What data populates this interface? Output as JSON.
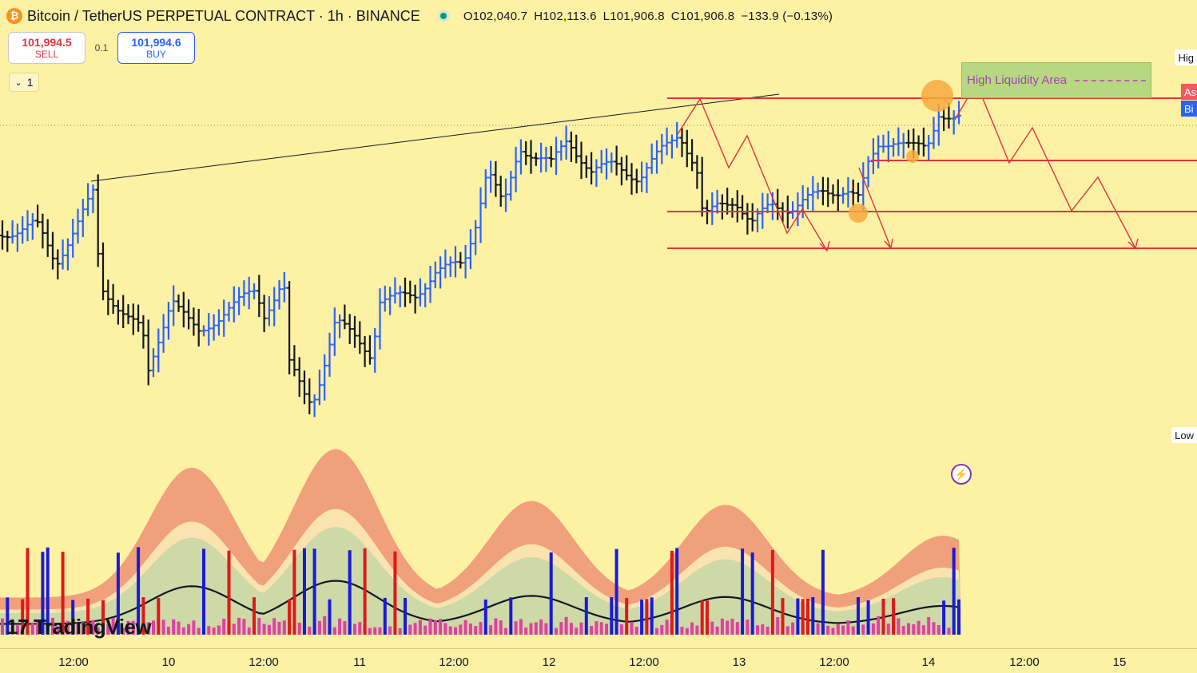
{
  "header": {
    "coin_glyph": "₿",
    "title": "Bitcoin / TetherUS PERPETUAL CONTRACT · 1h · BINANCE",
    "ohlc": {
      "open": "O102,040.7",
      "high": "H102,113.6",
      "low": "L101,906.8",
      "close": "C101,906.8",
      "change": "−133.9 (−0.13%)"
    }
  },
  "trade": {
    "sell_price": "101,994.5",
    "sell_label": "SELL",
    "spread": "0.1",
    "buy_price": "101,994.6",
    "buy_label": "BUY"
  },
  "collapse": {
    "chevron": "⌄",
    "count": "1"
  },
  "annotations": {
    "liquidity_label": "High Liquidity Area"
  },
  "price_axis": {
    "high_tag": "Hig",
    "low_tag": "Low",
    "ask_tag": "As",
    "bid_tag": "Bi"
  },
  "logo": {
    "mark": "17",
    "text": "TradingView"
  },
  "time_axis": {
    "ticks": [
      "12:00",
      "10",
      "12:00",
      "11",
      "12:00",
      "12",
      "12:00",
      "13",
      "12:00",
      "14",
      "12:00",
      "15"
    ]
  },
  "colors": {
    "background": "#fdf1a4",
    "up_bar": "#2962ff",
    "down_bar": "#131722",
    "resistance_line": "#e0343f",
    "volume_up": "#1a1ad9",
    "volume_down": "#e01818",
    "volume_small": "#e040a0",
    "band_outer": "#f0a07a",
    "band_mid": "#fbe3b0",
    "band_inner": "#cdd9a6"
  },
  "chart_data": {
    "type": "ohlc",
    "interval": "1h",
    "last_bar": {
      "open": 102040.7,
      "high": 102113.6,
      "low": 101906.8,
      "close": 101906.8,
      "change": -133.9,
      "change_pct": -0.13
    },
    "quote": {
      "bid": 101994.5,
      "ask": 101994.6,
      "spread": 0.1
    }
  }
}
